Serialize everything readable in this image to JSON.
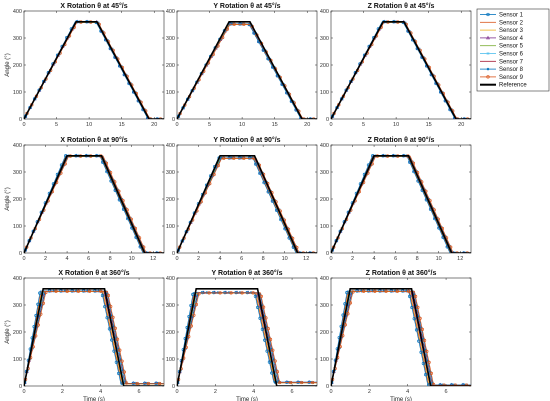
{
  "chart_data": [
    {
      "type": "line",
      "title": "X Rotation θ at 45°/s",
      "xlabel": "",
      "ylabel": "Angle (°)",
      "xlim": [
        0,
        21.5
      ],
      "ylim": [
        0,
        400
      ],
      "xticks": [
        0,
        5,
        10,
        15,
        20
      ],
      "yticks": [
        0,
        100,
        200,
        300,
        400
      ],
      "t1": 8,
      "t2": 11.2,
      "t3": 19.2,
      "ends": [
        0,
        0,
        0,
        0,
        0,
        0,
        0,
        0,
        0
      ],
      "plateaus": [
        360,
        359,
        358,
        360,
        358,
        359,
        358,
        360,
        359
      ]
    },
    {
      "type": "line",
      "title": "Y Rotation θ at 45°/s",
      "xlabel": "",
      "ylabel": "",
      "xlim": [
        0,
        21.5
      ],
      "ylim": [
        0,
        400
      ],
      "xticks": [
        0,
        5,
        10,
        15,
        20
      ],
      "yticks": [
        0,
        100,
        200,
        300,
        400
      ],
      "t1": 8,
      "t2": 11.2,
      "t3": 19.2,
      "ends": [
        0,
        0,
        0,
        0,
        0,
        0,
        0,
        0,
        0
      ],
      "plateaus": [
        352,
        351,
        350,
        352,
        350,
        351,
        350,
        352,
        351
      ]
    },
    {
      "type": "line",
      "title": "Z Rotation θ at 45°/s",
      "xlabel": "",
      "ylabel": "",
      "xlim": [
        0,
        21.5
      ],
      "ylim": [
        0,
        400
      ],
      "xticks": [
        0,
        5,
        10,
        15,
        20
      ],
      "yticks": [
        0,
        100,
        200,
        300,
        400
      ],
      "t1": 8,
      "t2": 11.2,
      "t3": 19.2,
      "ends": [
        0,
        0,
        0,
        0,
        0,
        0,
        0,
        0,
        0
      ],
      "plateaus": [
        360,
        359,
        358,
        360,
        358,
        359,
        358,
        360,
        359
      ]
    },
    {
      "type": "line",
      "title": "X Rotation θ at 90°/s",
      "xlabel": "",
      "ylabel": "Angle (°)",
      "xlim": [
        0,
        13
      ],
      "ylim": [
        0,
        400
      ],
      "xticks": [
        0,
        2,
        4,
        6,
        8,
        10,
        12
      ],
      "yticks": [
        0,
        100,
        200,
        300,
        400
      ],
      "t1": 4,
      "t2": 7.2,
      "t3": 11.2,
      "ends": [
        0,
        0,
        0,
        0,
        0,
        0,
        0,
        0,
        0
      ],
      "plateaus": [
        360,
        359,
        358,
        360,
        358,
        359,
        358,
        360,
        359
      ]
    },
    {
      "type": "line",
      "title": "Y Rotation θ at 90°/s",
      "xlabel": "",
      "ylabel": "",
      "xlim": [
        0,
        13
      ],
      "ylim": [
        0,
        400
      ],
      "xticks": [
        0,
        2,
        4,
        6,
        8,
        10,
        12
      ],
      "yticks": [
        0,
        100,
        200,
        300,
        400
      ],
      "t1": 4,
      "t2": 7.2,
      "t3": 11.2,
      "ends": [
        0,
        0,
        0,
        0,
        0,
        0,
        0,
        0,
        0
      ],
      "plateaus": [
        352,
        351,
        350,
        352,
        350,
        351,
        350,
        352,
        351
      ]
    },
    {
      "type": "line",
      "title": "Z Rotation θ at 90°/s",
      "xlabel": "",
      "ylabel": "",
      "xlim": [
        0,
        13
      ],
      "ylim": [
        0,
        400
      ],
      "xticks": [
        0,
        2,
        4,
        6,
        8,
        10,
        12
      ],
      "yticks": [
        0,
        100,
        200,
        300,
        400
      ],
      "t1": 4,
      "t2": 7.2,
      "t3": 11.2,
      "ends": [
        0,
        0,
        0,
        0,
        0,
        0,
        0,
        0,
        0
      ],
      "plateaus": [
        360,
        359,
        358,
        360,
        358,
        359,
        358,
        360,
        359
      ]
    },
    {
      "type": "line",
      "title": "X Rotation θ at 360°/s",
      "xlabel": "Time (s)",
      "ylabel": "Angle (°)",
      "xlim": [
        0,
        7.3
      ],
      "ylim": [
        0,
        400
      ],
      "xticks": [
        0,
        2,
        4,
        6
      ],
      "yticks": [
        0,
        100,
        200,
        300,
        400
      ],
      "t1": 1,
      "t2": 4.2,
      "t3": 5.2,
      "ends": [
        10,
        9,
        8,
        10,
        9,
        10,
        8,
        10,
        9
      ],
      "plateaus": [
        352,
        351,
        350,
        352,
        350,
        351,
        350,
        352,
        351
      ]
    },
    {
      "type": "line",
      "title": "Y Rotation θ at 360°/s",
      "xlabel": "Time (s)",
      "ylabel": "",
      "xlim": [
        0,
        7.3
      ],
      "ylim": [
        0,
        400
      ],
      "xticks": [
        0,
        2,
        4,
        6
      ],
      "yticks": [
        0,
        100,
        200,
        300,
        400
      ],
      "t1": 1,
      "t2": 4.2,
      "t3": 5.2,
      "ends": [
        14,
        13,
        12,
        14,
        12,
        13,
        12,
        14,
        13
      ],
      "plateaus": [
        346,
        345,
        344,
        346,
        344,
        345,
        344,
        346,
        345
      ]
    },
    {
      "type": "line",
      "title": "Z Rotation θ at 360°/s",
      "xlabel": "Time (s)",
      "ylabel": "",
      "xlim": [
        0,
        7.3
      ],
      "ylim": [
        0,
        400
      ],
      "xticks": [
        0,
        2,
        4,
        6
      ],
      "yticks": [
        0,
        100,
        200,
        300,
        400
      ],
      "t1": 1,
      "t2": 4.2,
      "t3": 5.2,
      "ends": [
        4,
        3,
        2,
        4,
        3,
        4,
        2,
        4,
        3
      ],
      "plateaus": [
        352,
        351,
        350,
        352,
        350,
        351,
        350,
        352,
        351
      ]
    }
  ],
  "legend": {
    "position": "top-right",
    "entries": [
      {
        "name": "Sensor 1",
        "color": "#0072BD",
        "marker": "o"
      },
      {
        "name": "Sensor 2",
        "color": "#D95319",
        "marker": "none"
      },
      {
        "name": "Sensor 3",
        "color": "#EDB120",
        "marker": "none"
      },
      {
        "name": "Sensor 4",
        "color": "#7E2F8E",
        "marker": "^"
      },
      {
        "name": "Sensor 5",
        "color": "#77AC30",
        "marker": "none"
      },
      {
        "name": "Sensor 6",
        "color": "#4DBEEE",
        "marker": "x"
      },
      {
        "name": "Sensor 7",
        "color": "#A2142F",
        "marker": "none"
      },
      {
        "name": "Sensor 8",
        "color": "#0072BD",
        "marker": "*"
      },
      {
        "name": "Sensor 9",
        "color": "#D95319",
        "marker": "o"
      },
      {
        "name": "Reference",
        "color": "#000000",
        "marker": "none"
      }
    ]
  }
}
